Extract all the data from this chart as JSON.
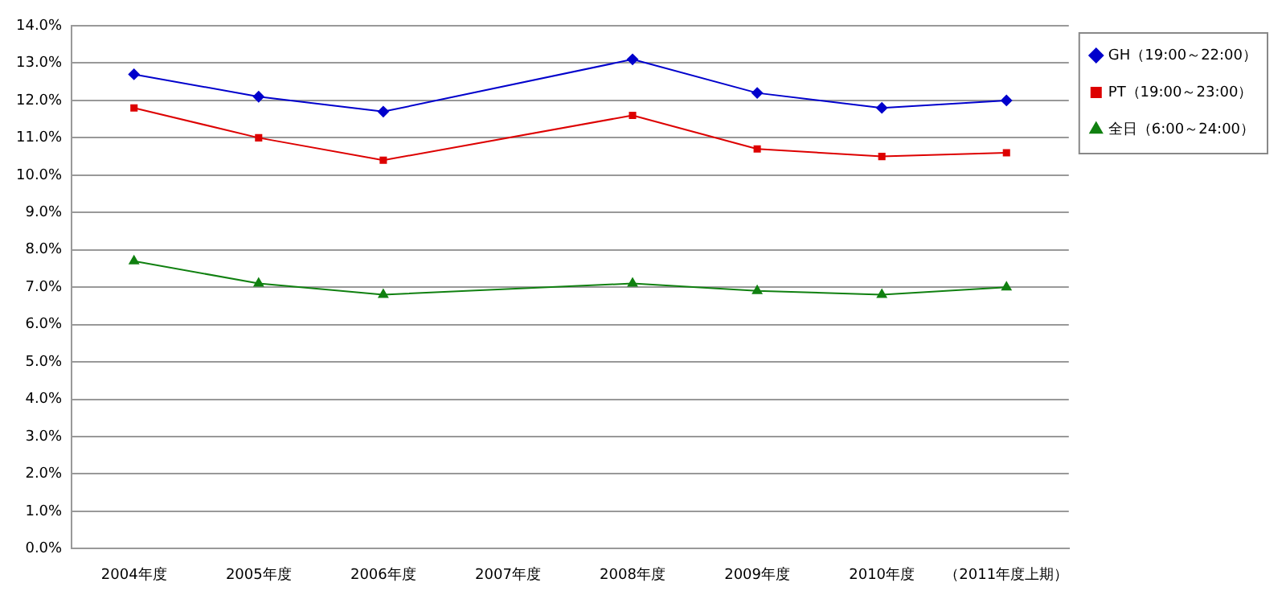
{
  "chart_data": {
    "type": "line",
    "categories": [
      "2004年度",
      "2005年度",
      "2006年度",
      "2007年度",
      "2008年度",
      "2009年度",
      "2010年度",
      "（2011年度上期）"
    ],
    "series": [
      {
        "name": "GH（19:00～22:00）",
        "color": "#0000cc",
        "marker": "diamond",
        "values": [
          12.7,
          12.1,
          11.7,
          null,
          13.1,
          12.2,
          11.8,
          12.0
        ]
      },
      {
        "name": "PT（19:00～23:00）",
        "color": "#dd0000",
        "marker": "square",
        "values": [
          11.8,
          11.0,
          10.4,
          null,
          11.6,
          10.7,
          10.5,
          10.6
        ]
      },
      {
        "name": "全日（6:00～24:00）",
        "color": "#108010",
        "marker": "triangle",
        "values": [
          7.7,
          7.1,
          6.8,
          null,
          7.1,
          6.9,
          6.8,
          7.0
        ]
      }
    ],
    "ylim": [
      0,
      14
    ],
    "yticks": [
      {
        "value": 0,
        "label": "0.0%"
      },
      {
        "value": 1,
        "label": "1.0%"
      },
      {
        "value": 2,
        "label": "2.0%"
      },
      {
        "value": 3,
        "label": "3.0%"
      },
      {
        "value": 4,
        "label": "4.0%"
      },
      {
        "value": 5,
        "label": "5.0%"
      },
      {
        "value": 6,
        "label": "6.0%"
      },
      {
        "value": 7,
        "label": "7.0%"
      },
      {
        "value": 8,
        "label": "8.0%"
      },
      {
        "value": 9,
        "label": "9.0%"
      },
      {
        "value": 10,
        "label": "10.0%"
      },
      {
        "value": 11,
        "label": "11.0%"
      },
      {
        "value": 12,
        "label": "12.0%"
      },
      {
        "value": 13,
        "label": "13.0%"
      },
      {
        "value": 14,
        "label": "14.0%"
      }
    ],
    "grid": "y",
    "legend": "top right"
  }
}
